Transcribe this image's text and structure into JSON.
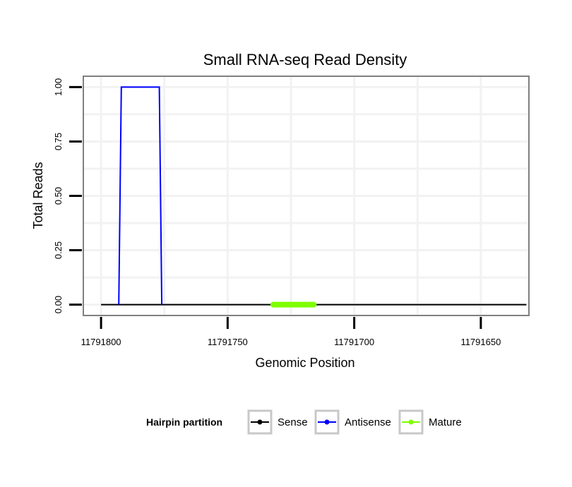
{
  "chart_data": {
    "type": "line",
    "title": "Small RNA-seq Read Density",
    "xlabel": "Genomic Position",
    "ylabel": "Total Reads",
    "x_reversed": true,
    "xlim": [
      11791807,
      11791631
    ],
    "ylim": [
      -0.05,
      1.05
    ],
    "x_ticks": [
      11791800,
      11791750,
      11791700,
      11791650
    ],
    "x_tick_labels": [
      "11791800",
      "11791750",
      "11791700",
      "11791650"
    ],
    "y_ticks": [
      0,
      0.25,
      0.5,
      0.75,
      1.0
    ],
    "y_tick_labels": [
      "0.00",
      "0.25",
      "0.50",
      "0.75",
      "1.00"
    ],
    "grid": true,
    "legend": {
      "title": "Hairpin partition",
      "position": "bottom",
      "entries": [
        {
          "name": "Sense",
          "color": "#000000"
        },
        {
          "name": "Antisense",
          "color": "#0000ff"
        },
        {
          "name": "Mature",
          "color": "#7fff00"
        }
      ]
    },
    "series": [
      {
        "name": "Sense",
        "color": "#000000",
        "x": [
          11791800,
          11791632
        ],
        "y": [
          0,
          0
        ]
      },
      {
        "name": "Antisense",
        "color": "#0000ff",
        "x": [
          11791793,
          11791792,
          11791777,
          11791776
        ],
        "y": [
          0,
          1,
          1,
          0
        ]
      },
      {
        "name": "Mature",
        "color": "#7fff00",
        "x": [
          11791732,
          11791716
        ],
        "y": [
          0,
          0
        ]
      }
    ]
  }
}
